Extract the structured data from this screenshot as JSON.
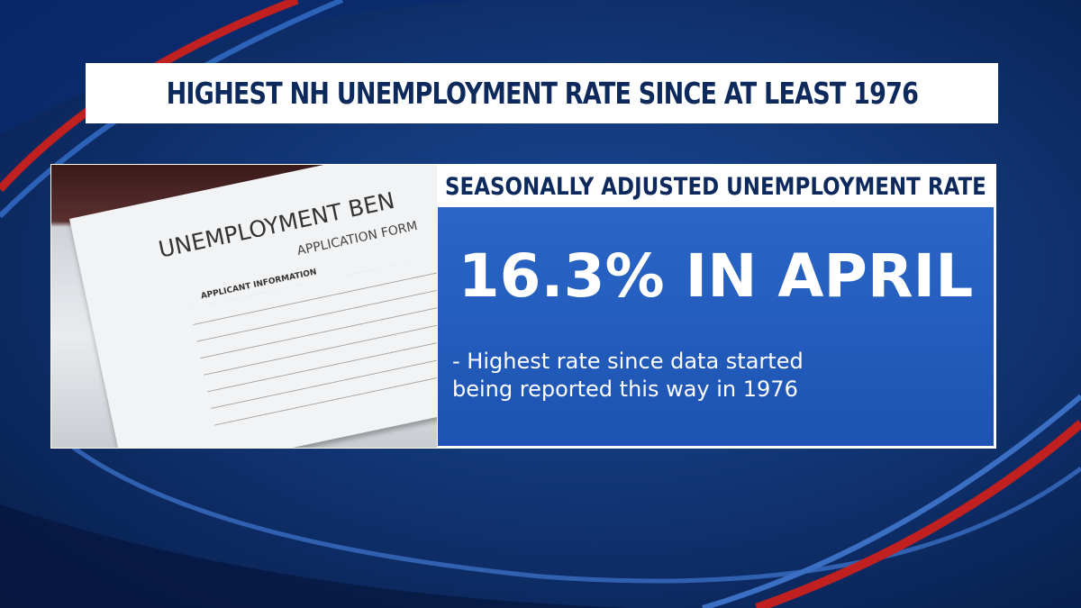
{
  "header": {
    "title": "HIGHEST NH UNEMPLOYMENT RATE SINCE AT LEAST 1976"
  },
  "photo": {
    "form_title": "UNEMPLOYMENT BEN",
    "form_subtitle": "APPLICATION FORM",
    "section": "APPLICANT INFORMATION"
  },
  "panel": {
    "heading": "SEASONALLY ADJUSTED UNEMPLOYMENT RATE",
    "headline": "16.3% IN APRIL",
    "bullet_lines": [
      "- Highest rate since data started",
      "being reported this way in 1976"
    ]
  }
}
